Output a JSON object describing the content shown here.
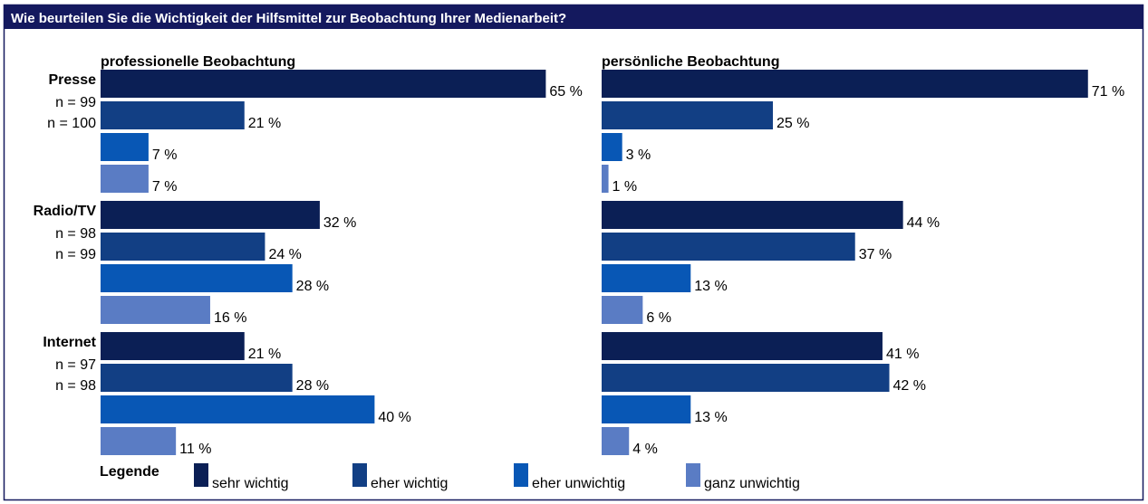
{
  "chart_data": {
    "type": "bar",
    "orientation": "horizontal",
    "title": "Wie beurteilen Sie die Wichtigkeit der Hilfsmittel zur Beobachtung Ihrer Medienarbeit?",
    "categories": [
      "Presse",
      "Radio/TV",
      "Internet"
    ],
    "legend_title": "Legende",
    "series": [
      {
        "name": "sehr wichtig",
        "color": "#0b1f55"
      },
      {
        "name": "eher wichtig",
        "color": "#123f84"
      },
      {
        "name": "eher unwichtig",
        "color": "#0857b5"
      },
      {
        "name": "ganz unwichtig",
        "color": "#5a7cc4"
      }
    ],
    "panels": [
      {
        "title": "professionelle Beobachtung",
        "n_labels": [
          "n = 99",
          "n = 98",
          "n = 97"
        ],
        "series": [
          {
            "values": [
              65,
              32,
              21
            ],
            "value_labels": [
              "65 %",
              "32 %",
              "21 %"
            ]
          },
          {
            "values": [
              21,
              24,
              28
            ],
            "value_labels": [
              "21 %",
              "24 %",
              "28 %"
            ]
          },
          {
            "values": [
              7,
              28,
              40
            ],
            "value_labels": [
              "7 %",
              "28 %",
              "40 %"
            ]
          },
          {
            "values": [
              7,
              16,
              11
            ],
            "value_labels": [
              "7 %",
              "16 %",
              "11 %"
            ]
          }
        ]
      },
      {
        "title": "persönliche Beobachtung",
        "n_labels": [
          "n = 100",
          "n = 99",
          "n = 98"
        ],
        "series": [
          {
            "values": [
              71,
              44,
              41
            ],
            "value_labels": [
              "71 %",
              "44 %",
              "41 %"
            ]
          },
          {
            "values": [
              25,
              37,
              42
            ],
            "value_labels": [
              "25 %",
              "37 %",
              "42 %"
            ]
          },
          {
            "values": [
              3,
              13,
              13
            ],
            "value_labels": [
              "3 %",
              "13 %",
              "13 %"
            ]
          },
          {
            "values": [
              1,
              6,
              4
            ],
            "value_labels": [
              "1 %",
              "6 %",
              "4 %"
            ]
          }
        ]
      }
    ]
  }
}
